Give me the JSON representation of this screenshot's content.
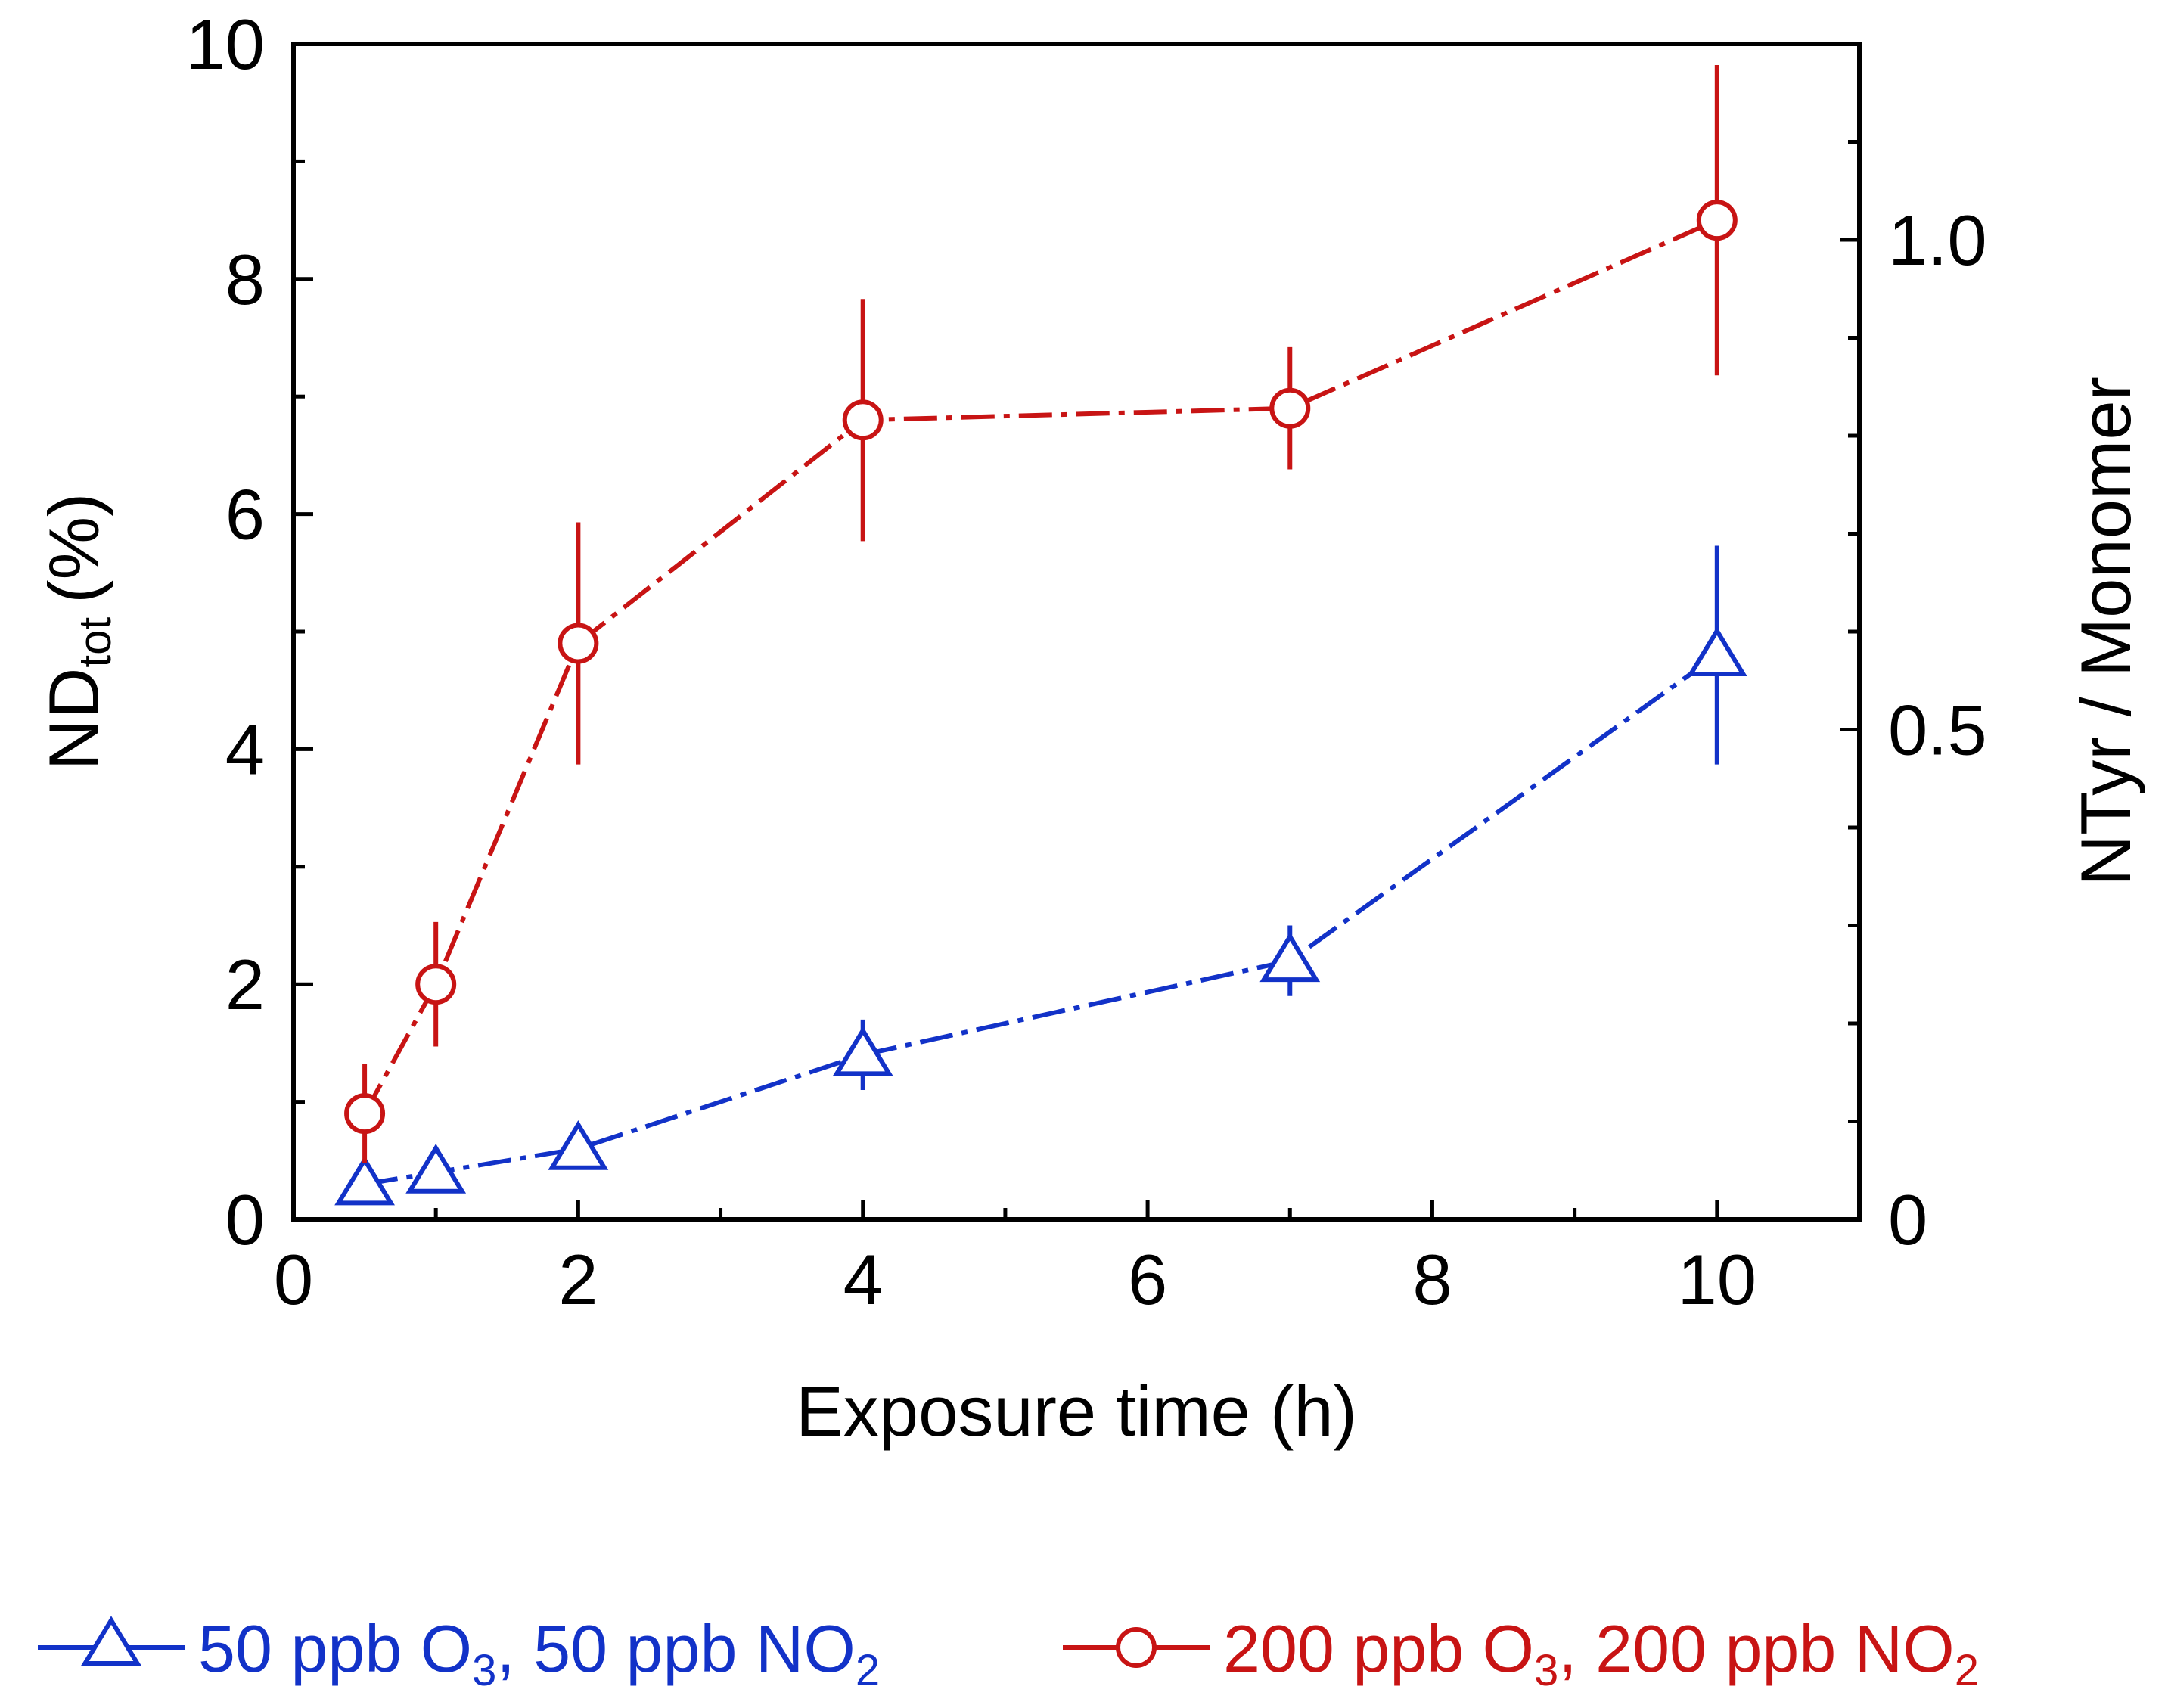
{
  "chart_data": {
    "type": "line",
    "xlabel": "Exposure time (h)",
    "ylabel_main": "ND",
    "ylabel_sub": "tot",
    "ylabel_unit": "(%)",
    "y2label": "NTyr / Monomer",
    "xlim": [
      0,
      11
    ],
    "ylim": [
      0,
      10
    ],
    "y2lim": [
      0,
      1.2
    ],
    "x_ticks": [
      0,
      2,
      4,
      6,
      8,
      10
    ],
    "x_minor_ticks": [
      1,
      3,
      5,
      7,
      9
    ],
    "y_ticks": [
      0,
      2,
      4,
      6,
      8,
      10
    ],
    "y_minor_ticks": [
      1,
      3,
      5,
      7,
      9
    ],
    "y2_ticks": [
      0,
      0.5,
      1.0
    ],
    "y2_tick_labels": [
      "0",
      "0.5",
      "1.0"
    ],
    "y2_minor_ticks": [
      0.1,
      0.2,
      0.3,
      0.4,
      0.6,
      0.7,
      0.8,
      0.9,
      1.1
    ],
    "grid": false,
    "legend_position": "bottom",
    "series": [
      {
        "name": "50 ppb O3, 50 ppb NO2",
        "legend_parts": [
          "50 ppb O",
          "3",
          ", 50 ppb NO",
          "2"
        ],
        "color": "#1232c8",
        "marker": "triangle",
        "x": [
          0.5,
          1,
          2,
          4,
          7,
          10
        ],
        "y": [
          0.3,
          0.4,
          0.6,
          1.4,
          2.2,
          4.8
        ],
        "error": [
          0.0,
          0.0,
          0.0,
          0.3,
          0.3,
          0.93
        ]
      },
      {
        "name": "200 ppb O3, 200 ppb NO2",
        "legend_parts": [
          "200 ppb O",
          "3",
          ", 200 ppb NO",
          "2"
        ],
        "color": "#c81414",
        "marker": "circle",
        "x": [
          0.5,
          1,
          2,
          4,
          7,
          10
        ],
        "y": [
          0.9,
          2.0,
          4.9,
          6.8,
          6.9,
          8.5
        ],
        "error": [
          0.42,
          0.53,
          1.03,
          1.03,
          0.52,
          1.32
        ]
      }
    ]
  }
}
